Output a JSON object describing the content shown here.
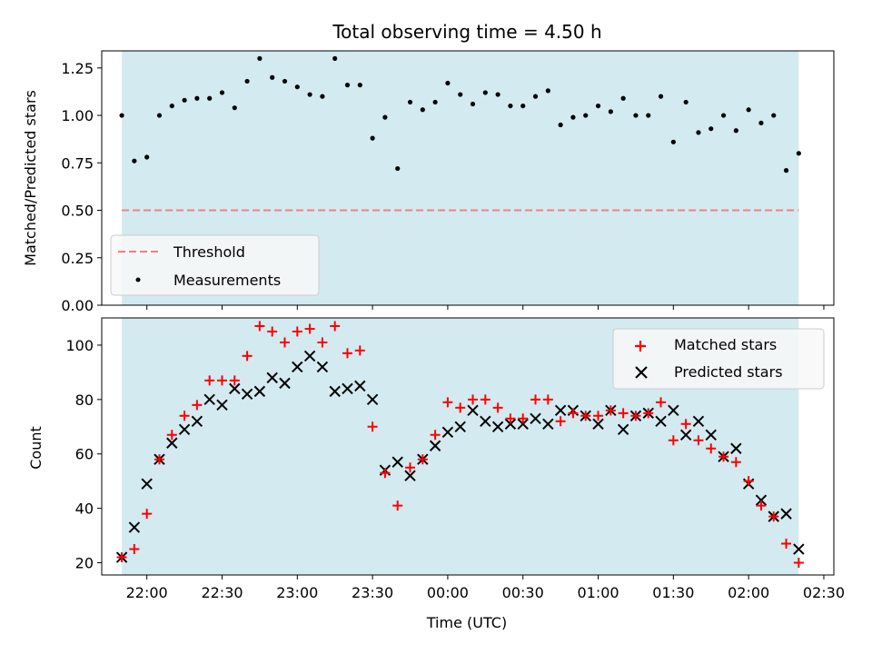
{
  "chart_data": [
    {
      "type": "scatter",
      "title": "Total observing time = 4.50 h",
      "ylabel": "Matched/Predicted stars",
      "xlabel": "",
      "ylim": [
        0.0,
        1.34
      ],
      "yticks": [
        "0.00",
        "0.25",
        "0.50",
        "0.75",
        "1.00",
        "1.25"
      ],
      "ytick_values": [
        0.0,
        0.25,
        0.5,
        0.75,
        1.0,
        1.25
      ],
      "xticks_shown": false,
      "shaded_span": [
        "21:50",
        "02:20"
      ],
      "shade_color": "#d3eaf0",
      "legend_location": "lower-left",
      "threshold": {
        "name": "Threshold",
        "value": 0.5,
        "color": "#f08080"
      },
      "series": [
        {
          "name": "Measurements",
          "color": "#000000",
          "x": [
            "21:50",
            "21:55",
            "22:00",
            "22:05",
            "22:10",
            "22:15",
            "22:20",
            "22:25",
            "22:30",
            "22:35",
            "22:40",
            "22:45",
            "22:50",
            "22:55",
            "23:00",
            "23:05",
            "23:10",
            "23:15",
            "23:20",
            "23:25",
            "23:30",
            "23:35",
            "23:40",
            "23:45",
            "23:50",
            "23:55",
            "00:00",
            "00:05",
            "00:10",
            "00:15",
            "00:20",
            "00:25",
            "00:30",
            "00:35",
            "00:40",
            "00:45",
            "00:50",
            "00:55",
            "01:00",
            "01:05",
            "01:10",
            "01:15",
            "01:20",
            "01:25",
            "01:30",
            "01:35",
            "01:40",
            "01:45",
            "01:50",
            "01:55",
            "02:00",
            "02:05",
            "02:10",
            "02:15",
            "02:20"
          ],
          "y": [
            1.0,
            0.76,
            0.78,
            1.0,
            1.05,
            1.08,
            1.09,
            1.09,
            1.12,
            1.04,
            1.18,
            1.3,
            1.2,
            1.18,
            1.15,
            1.11,
            1.1,
            1.3,
            1.16,
            1.16,
            0.88,
            0.99,
            0.72,
            1.07,
            1.03,
            1.07,
            1.17,
            1.11,
            1.06,
            1.12,
            1.11,
            1.05,
            1.05,
            1.1,
            1.13,
            0.95,
            0.99,
            1.0,
            1.05,
            1.02,
            1.09,
            1.0,
            1.0,
            1.1,
            0.86,
            1.07,
            0.91,
            0.93,
            1.0,
            0.92,
            1.03,
            0.96,
            1.0,
            0.71,
            0.8
          ]
        }
      ]
    },
    {
      "type": "scatter",
      "title": "",
      "xlabel": "Time (UTC)",
      "ylabel": "Count",
      "ylim": [
        15.5,
        110
      ],
      "yticks": [
        "20",
        "40",
        "60",
        "80",
        "100"
      ],
      "ytick_values": [
        20,
        40,
        60,
        80,
        100
      ],
      "xticks": [
        "22:00",
        "22:30",
        "23:00",
        "23:30",
        "00:00",
        "00:30",
        "01:00",
        "01:30",
        "02:00",
        "02:30"
      ],
      "xlim": [
        "21:42",
        "02:34"
      ],
      "shaded_span": [
        "21:50",
        "02:20"
      ],
      "shade_color": "#d3eaf0",
      "legend_location": "upper-right",
      "series": [
        {
          "name": "Matched stars",
          "marker": "plus",
          "color": "#ff0000",
          "x": [
            "21:50",
            "21:55",
            "22:00",
            "22:05",
            "22:10",
            "22:15",
            "22:20",
            "22:25",
            "22:30",
            "22:35",
            "22:40",
            "22:45",
            "22:50",
            "22:55",
            "23:00",
            "23:05",
            "23:10",
            "23:15",
            "23:20",
            "23:25",
            "23:30",
            "23:35",
            "23:40",
            "23:45",
            "23:50",
            "23:55",
            "00:00",
            "00:05",
            "00:10",
            "00:15",
            "00:20",
            "00:25",
            "00:30",
            "00:35",
            "00:40",
            "00:45",
            "00:50",
            "00:55",
            "01:00",
            "01:05",
            "01:10",
            "01:15",
            "01:20",
            "01:25",
            "01:30",
            "01:35",
            "01:40",
            "01:45",
            "01:50",
            "01:55",
            "02:00",
            "02:05",
            "02:10",
            "02:15",
            "02:20"
          ],
          "y": [
            22,
            25,
            38,
            58,
            67,
            74,
            78,
            87,
            87,
            87,
            96,
            107,
            105,
            101,
            105,
            106,
            101,
            107,
            97,
            98,
            70,
            53,
            41,
            55,
            58,
            67,
            79,
            77,
            80,
            80,
            77,
            73,
            73,
            80,
            80,
            72,
            75,
            74,
            74,
            76,
            75,
            74,
            75,
            79,
            65,
            71,
            65,
            62,
            59,
            57,
            50,
            41,
            37,
            27,
            20
          ]
        },
        {
          "name": "Predicted stars",
          "marker": "x",
          "color": "#000000",
          "x": [
            "21:50",
            "21:55",
            "22:00",
            "22:05",
            "22:10",
            "22:15",
            "22:20",
            "22:25",
            "22:30",
            "22:35",
            "22:40",
            "22:45",
            "22:50",
            "22:55",
            "23:00",
            "23:05",
            "23:10",
            "23:15",
            "23:20",
            "23:25",
            "23:30",
            "23:35",
            "23:40",
            "23:45",
            "23:50",
            "23:55",
            "00:00",
            "00:05",
            "00:10",
            "00:15",
            "00:20",
            "00:25",
            "00:30",
            "00:35",
            "00:40",
            "00:45",
            "00:50",
            "00:55",
            "01:00",
            "01:05",
            "01:10",
            "01:15",
            "01:20",
            "01:25",
            "01:30",
            "01:35",
            "01:40",
            "01:45",
            "01:50",
            "01:55",
            "02:00",
            "02:05",
            "02:10",
            "02:15",
            "02:20"
          ],
          "y": [
            22,
            33,
            49,
            58,
            64,
            69,
            72,
            80,
            78,
            84,
            82,
            83,
            88,
            86,
            92,
            96,
            92,
            83,
            84,
            85,
            80,
            54,
            57,
            52,
            58,
            63,
            68,
            70,
            76,
            72,
            70,
            71,
            71,
            73,
            71,
            76,
            76,
            74,
            71,
            76,
            69,
            74,
            75,
            72,
            76,
            67,
            72,
            67,
            59,
            62,
            49,
            43,
            37,
            38,
            25
          ]
        }
      ]
    }
  ]
}
